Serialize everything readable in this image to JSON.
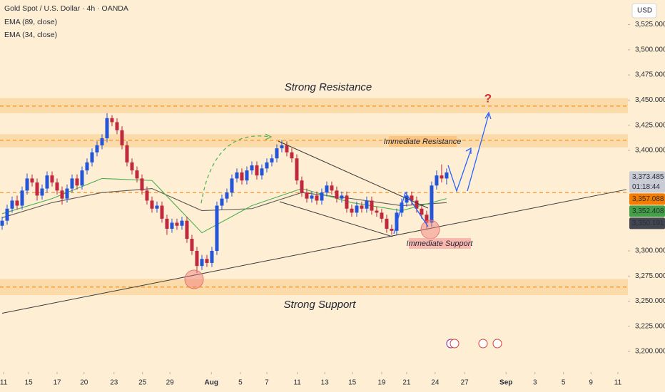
{
  "chart_data": {
    "type": "candlestick",
    "title": "Gold Spot / U.S. Dollar · 4h · OANDA",
    "currency": "USD",
    "up_color": "#2455d8",
    "down_color": "#c0283d",
    "x": [
      0,
      1,
      2,
      3,
      4,
      5,
      6,
      7,
      8,
      9,
      10,
      11,
      12,
      13,
      14,
      15,
      16,
      17,
      18,
      19,
      20,
      21,
      22,
      23,
      24,
      25,
      26,
      27,
      28,
      29,
      30,
      31,
      32,
      33,
      34,
      35,
      36,
      37,
      38,
      39,
      40,
      41,
      42,
      43,
      44,
      45,
      46,
      47,
      48,
      49,
      50,
      51,
      52,
      53,
      54,
      55,
      56,
      57,
      58,
      59,
      60,
      61,
      62,
      63,
      64,
      65,
      66,
      67,
      68,
      69,
      70,
      71,
      72,
      73,
      74,
      75,
      76,
      77,
      78,
      79,
      80,
      81,
      82,
      83,
      84,
      85,
      86,
      87,
      88,
      89
    ],
    "open": [
      3325,
      3330,
      3342,
      3350,
      3345,
      3360,
      3372,
      3368,
      3355,
      3362,
      3375,
      3368,
      3360,
      3352,
      3362,
      3372,
      3365,
      3380,
      3388,
      3398,
      3405,
      3412,
      3432,
      3428,
      3420,
      3405,
      3388,
      3380,
      3372,
      3360,
      3350,
      3342,
      3345,
      3332,
      3322,
      3328,
      3325,
      3330,
      3312,
      3300,
      3285,
      3292,
      3288,
      3300,
      3345,
      3352,
      3358,
      3372,
      3378,
      3370,
      3380,
      3385,
      3375,
      3382,
      3388,
      3392,
      3402,
      3405,
      3398,
      3392,
      3370,
      3358,
      3352,
      3355,
      3350,
      3358,
      3365,
      3360,
      3352,
      3355,
      3342,
      3338,
      3345,
      3342,
      3350,
      3340,
      3338,
      3332,
      3322,
      3320,
      3338,
      3348,
      3355,
      3350,
      3342,
      3336,
      3328,
      3365,
      3375,
      3372
    ],
    "high": [
      3334,
      3346,
      3354,
      3355,
      3364,
      3377,
      3376,
      3372,
      3366,
      3379,
      3379,
      3372,
      3364,
      3366,
      3376,
      3376,
      3384,
      3392,
      3402,
      3409,
      3416,
      3437,
      3435,
      3432,
      3424,
      3409,
      3392,
      3384,
      3376,
      3364,
      3354,
      3349,
      3349,
      3336,
      3332,
      3332,
      3334,
      3334,
      3316,
      3304,
      3296,
      3296,
      3304,
      3349,
      3356,
      3362,
      3376,
      3382,
      3382,
      3384,
      3389,
      3389,
      3386,
      3392,
      3396,
      3406,
      3410,
      3409,
      3402,
      3396,
      3374,
      3362,
      3359,
      3359,
      3362,
      3369,
      3369,
      3364,
      3359,
      3359,
      3346,
      3349,
      3349,
      3354,
      3354,
      3344,
      3342,
      3336,
      3326,
      3342,
      3352,
      3359,
      3359,
      3354,
      3346,
      3340,
      3369,
      3380,
      3386,
      3382
    ],
    "low": [
      3321,
      3326,
      3338,
      3341,
      3341,
      3356,
      3364,
      3350,
      3351,
      3358,
      3364,
      3356,
      3346,
      3348,
      3358,
      3361,
      3361,
      3376,
      3384,
      3394,
      3401,
      3408,
      3424,
      3416,
      3401,
      3384,
      3376,
      3368,
      3356,
      3346,
      3338,
      3338,
      3328,
      3316,
      3318,
      3321,
      3321,
      3308,
      3296,
      3278,
      3281,
      3284,
      3284,
      3296,
      3341,
      3348,
      3354,
      3368,
      3366,
      3366,
      3376,
      3371,
      3371,
      3378,
      3384,
      3388,
      3398,
      3394,
      3388,
      3366,
      3354,
      3348,
      3348,
      3346,
      3346,
      3354,
      3356,
      3348,
      3348,
      3338,
      3334,
      3334,
      3338,
      3338,
      3336,
      3334,
      3328,
      3318,
      3316,
      3316,
      3334,
      3344,
      3346,
      3338,
      3332,
      3322,
      3324,
      3361,
      3368,
      3366
    ],
    "close": [
      3330,
      3342,
      3350,
      3345,
      3360,
      3372,
      3368,
      3355,
      3362,
      3375,
      3368,
      3360,
      3352,
      3362,
      3372,
      3365,
      3380,
      3388,
      3398,
      3405,
      3412,
      3432,
      3428,
      3420,
      3405,
      3388,
      3380,
      3372,
      3360,
      3350,
      3342,
      3345,
      3332,
      3322,
      3328,
      3325,
      3330,
      3312,
      3300,
      3285,
      3292,
      3288,
      3300,
      3345,
      3352,
      3358,
      3372,
      3378,
      3370,
      3380,
      3385,
      3375,
      3382,
      3388,
      3392,
      3402,
      3405,
      3398,
      3392,
      3370,
      3358,
      3352,
      3355,
      3350,
      3358,
      3365,
      3360,
      3352,
      3355,
      3342,
      3338,
      3345,
      3342,
      3350,
      3340,
      3338,
      3332,
      3322,
      3320,
      3338,
      3348,
      3355,
      3350,
      3342,
      3336,
      3328,
      3365,
      3375,
      3372,
      3378
    ],
    "series": [
      {
        "name": "EMA (89, close)",
        "color": "#5d5b57",
        "x": [
          0,
          10,
          20,
          30,
          40,
          50,
          60,
          70,
          80,
          89
        ],
        "values": [
          3333,
          3348,
          3358,
          3362,
          3340,
          3342,
          3358,
          3352,
          3345,
          3348
        ]
      },
      {
        "name": "EMA (34, close)",
        "color": "#4caf50",
        "x": [
          0,
          10,
          20,
          30,
          40,
          50,
          60,
          70,
          80,
          89
        ],
        "values": [
          3337,
          3352,
          3372,
          3370,
          3318,
          3345,
          3362,
          3348,
          3340,
          3352
        ]
      }
    ],
    "levels": [
      {
        "value": 3444,
        "band": [
          3437,
          3452
        ]
      },
      {
        "value": 3410,
        "band": [
          3403,
          3416
        ]
      },
      {
        "value": 3358,
        "band": null
      },
      {
        "value": 3264,
        "band": [
          3256,
          3272
        ]
      }
    ],
    "trendline": {
      "x": [
        0,
        125
      ],
      "values": [
        3238,
        3361
      ]
    },
    "annotations": [
      "Strong Resistance",
      "Immediate Resistance",
      "Immediate Support",
      "Strong Support",
      "?"
    ],
    "price_tags": [
      {
        "value": 3373.485,
        "label": "3,373.485",
        "color": "#c9ccd4"
      },
      {
        "value": 3357.088,
        "label": "3,357.088",
        "color": "#f57c00"
      },
      {
        "value": 3352.408,
        "label": "3,352.408",
        "color": "#43a047"
      },
      {
        "value": 3350.191,
        "label": "3,350.191",
        "color": "#434651"
      }
    ],
    "countdown": "01:18:44",
    "xlim": [
      -0.43,
      125.3
    ],
    "ylim": [
      3179.5,
      3549.5
    ],
    "xticks": [
      {
        "value": 0.3,
        "label": "11"
      },
      {
        "value": 5.3,
        "label": "15"
      },
      {
        "value": 11,
        "label": "17"
      },
      {
        "value": 16.4,
        "label": "20"
      },
      {
        "value": 22.4,
        "label": "23"
      },
      {
        "value": 28.1,
        "label": "25"
      },
      {
        "value": 33.6,
        "label": "29"
      },
      {
        "value": 41.9,
        "label": "Aug"
      },
      {
        "value": 47.7,
        "label": "5"
      },
      {
        "value": 53,
        "label": "7"
      },
      {
        "value": 59.1,
        "label": "11"
      },
      {
        "value": 64.6,
        "label": "13"
      },
      {
        "value": 70.1,
        "label": "15"
      },
      {
        "value": 76,
        "label": "19"
      },
      {
        "value": 81,
        "label": "21"
      },
      {
        "value": 86.7,
        "label": "24"
      },
      {
        "value": 92.6,
        "label": "27"
      },
      {
        "value": 100.9,
        "label": "Sep"
      },
      {
        "value": 106.7,
        "label": "3"
      },
      {
        "value": 112.4,
        "label": "5"
      },
      {
        "value": 117.9,
        "label": "9"
      },
      {
        "value": 123.3,
        "label": "11"
      }
    ],
    "yticks": [
      {
        "value": 3525,
        "label": "3,525.000"
      },
      {
        "value": 3500,
        "label": "3,500.000"
      },
      {
        "value": 3475,
        "label": "3,475.000"
      },
      {
        "value": 3450,
        "label": "3,450.000"
      },
      {
        "value": 3425,
        "label": "3,425.000"
      },
      {
        "value": 3400,
        "label": "3,400.000"
      },
      {
        "value": 3300,
        "label": "3,300.000"
      },
      {
        "value": 3275,
        "label": "3,275.000"
      },
      {
        "value": 3250,
        "label": "3,250.000"
      },
      {
        "value": 3225,
        "label": "3,225.000"
      },
      {
        "value": 3200,
        "label": "3,200.000"
      }
    ]
  }
}
